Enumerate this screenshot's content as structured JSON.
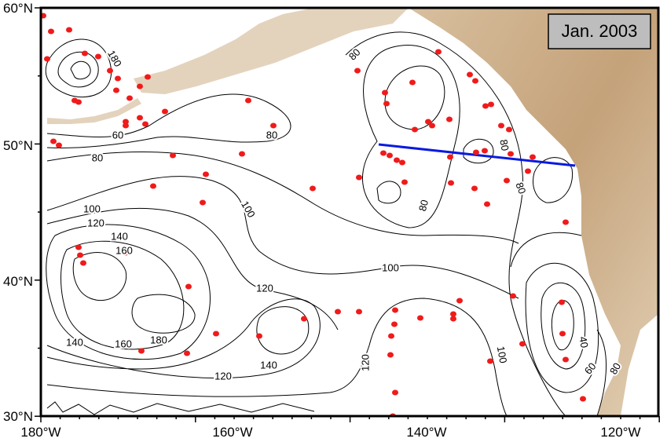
{
  "title_box": "Jan. 2003",
  "lat_labels": [
    "60°N",
    "50°N",
    "40°N",
    "30°N"
  ],
  "lon_labels": [
    "180°W",
    "160°W",
    "140°W",
    "120°W"
  ],
  "contour_labels": [
    "180",
    "80",
    "60",
    "80",
    "80",
    "100",
    "100",
    "120",
    "140",
    "160",
    "100",
    "120",
    "140",
    "160",
    "180",
    "140",
    "120",
    "120",
    "100",
    "80",
    "80",
    "80",
    "40",
    "60",
    "80"
  ]
}
